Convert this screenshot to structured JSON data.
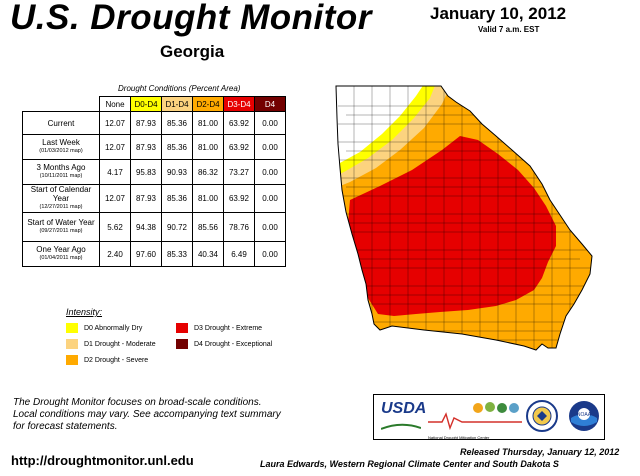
{
  "header": {
    "title": "U.S. Drought Monitor",
    "state": "Georgia",
    "date": "January 10, 2012",
    "valid": "Valid 7 a.m. EST"
  },
  "table": {
    "caption": "Drought Conditions (Percent Area)",
    "columns": [
      "None",
      "D0-D4",
      "D1-D4",
      "D2-D4",
      "D3-D4",
      "D4"
    ],
    "column_colors": [
      "#ffffff",
      "#ffff00",
      "#fcd37f",
      "#ffaa00",
      "#e60000",
      "#730000"
    ],
    "rows": [
      {
        "label": "Current",
        "sub": "",
        "values": [
          "12.07",
          "87.93",
          "85.36",
          "81.00",
          "63.92",
          "0.00"
        ]
      },
      {
        "label": "Last Week",
        "sub": "(01/03/2012 map)",
        "values": [
          "12.07",
          "87.93",
          "85.36",
          "81.00",
          "63.92",
          "0.00"
        ]
      },
      {
        "label": "3 Months Ago",
        "sub": "(10/11/2011 map)",
        "values": [
          "4.17",
          "95.83",
          "90.93",
          "86.32",
          "73.27",
          "0.00"
        ]
      },
      {
        "label": "Start of Calendar Year",
        "sub": "(12/27/2011 map)",
        "values": [
          "12.07",
          "87.93",
          "85.36",
          "81.00",
          "63.92",
          "0.00"
        ]
      },
      {
        "label": "Start of Water Year",
        "sub": "(09/27/2011 map)",
        "values": [
          "5.62",
          "94.38",
          "90.72",
          "85.56",
          "78.76",
          "0.00"
        ]
      },
      {
        "label": "One Year Ago",
        "sub": "(01/04/2011 map)",
        "values": [
          "2.40",
          "97.60",
          "85.33",
          "40.34",
          "6.49",
          "0.00"
        ]
      }
    ]
  },
  "legend": {
    "title": "Intensity:",
    "items": [
      {
        "label": "D0 Abnormally Dry",
        "color": "#ffff00"
      },
      {
        "label": "D1 Drought - Moderate",
        "color": "#fcd37f"
      },
      {
        "label": "D2 Drought - Severe",
        "color": "#ffaa00"
      },
      {
        "label": "D3 Drought - Extreme",
        "color": "#e60000"
      },
      {
        "label": "D4 Drought - Exceptional",
        "color": "#730000"
      }
    ]
  },
  "footer": {
    "disclaimer_1": "The Drought Monitor focuses on broad-scale conditions.",
    "disclaimer_2": "Local conditions may vary. See accompanying text summary",
    "disclaimer_3": "for forecast statements.",
    "url": "http://droughtmonitor.unl.edu",
    "released": "Released Thursday, January 12, 2012",
    "author": "Laura Edwards, Western Regional Climate Center and South Dakota S"
  },
  "logos": {
    "usda": "USDA",
    "ndmc": "National Drought Mitigation Center",
    "seal_icon": "department-of-commerce-seal-icon",
    "noaa": "NOAA"
  }
}
